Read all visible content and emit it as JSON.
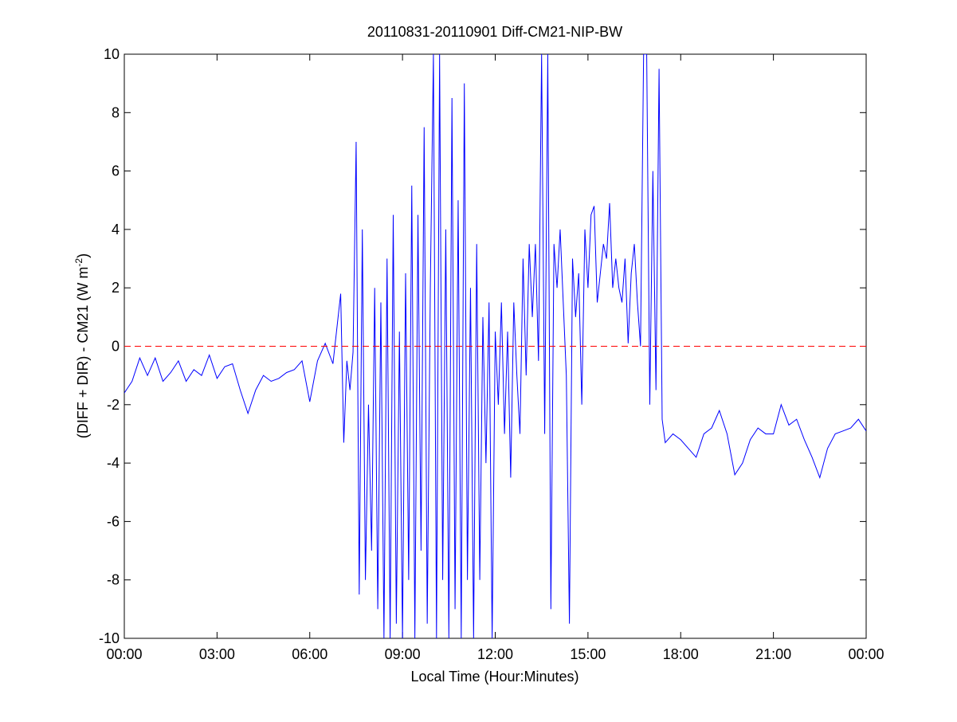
{
  "chart_data": {
    "type": "line",
    "title": "20110831-20110901 Diff-CM21-NIP-BW",
    "xlabel": "Local Time (Hour:Minutes)",
    "ylabel": "(DIFF + DIR) - CM21 (W m",
    "ylabel_sup": "-2",
    "ylabel_end": ")",
    "color": "#0000ff",
    "reference_line": {
      "value": 0,
      "color": "#ff0000",
      "style": "dashed"
    },
    "xlim": [
      0,
      24
    ],
    "xticks": [
      {
        "value": 0,
        "label": "00:00"
      },
      {
        "value": 3,
        "label": "03:00"
      },
      {
        "value": 6,
        "label": "06:00"
      },
      {
        "value": 9,
        "label": "09:00"
      },
      {
        "value": 12,
        "label": "12:00"
      },
      {
        "value": 15,
        "label": "15:00"
      },
      {
        "value": 18,
        "label": "18:00"
      },
      {
        "value": 21,
        "label": "21:00"
      },
      {
        "value": 24,
        "label": "00:00"
      }
    ],
    "ylim": [
      -10,
      10
    ],
    "yticks": [
      -10,
      -8,
      -6,
      -4,
      -2,
      0,
      2,
      4,
      6,
      8,
      10
    ],
    "x": [
      0,
      0.25,
      0.5,
      0.75,
      1,
      1.25,
      1.5,
      1.75,
      2,
      2.25,
      2.5,
      2.75,
      3,
      3.25,
      3.5,
      3.75,
      4,
      4.25,
      4.5,
      4.75,
      5,
      5.25,
      5.5,
      5.75,
      6,
      6.25,
      6.5,
      6.75,
      7,
      7.1,
      7.2,
      7.3,
      7.4,
      7.5,
      7.6,
      7.7,
      7.8,
      7.9,
      8,
      8.1,
      8.2,
      8.3,
      8.4,
      8.5,
      8.6,
      8.7,
      8.8,
      8.9,
      9,
      9.1,
      9.2,
      9.3,
      9.4,
      9.5,
      9.6,
      9.7,
      9.8,
      9.9,
      10,
      10.1,
      10.2,
      10.3,
      10.4,
      10.5,
      10.6,
      10.7,
      10.8,
      10.9,
      11,
      11.1,
      11.2,
      11.3,
      11.4,
      11.5,
      11.6,
      11.7,
      11.8,
      11.9,
      12,
      12.1,
      12.2,
      12.3,
      12.4,
      12.5,
      12.6,
      12.7,
      12.8,
      12.9,
      13,
      13.1,
      13.2,
      13.3,
      13.4,
      13.5,
      13.6,
      13.7,
      13.8,
      13.9,
      14,
      14.1,
      14.2,
      14.3,
      14.4,
      14.5,
      14.6,
      14.7,
      14.8,
      14.9,
      15,
      15.1,
      15.2,
      15.3,
      15.4,
      15.5,
      15.6,
      15.7,
      15.8,
      15.9,
      16,
      16.1,
      16.2,
      16.3,
      16.4,
      16.5,
      16.6,
      16.7,
      16.8,
      16.9,
      17,
      17.1,
      17.2,
      17.3,
      17.4,
      17.5,
      17.75,
      18,
      18.25,
      18.5,
      18.75,
      19,
      19.25,
      19.5,
      19.75,
      20,
      20.25,
      20.5,
      20.75,
      21,
      21.25,
      21.5,
      21.75,
      22,
      22.25,
      22.5,
      22.75,
      23,
      23.25,
      23.5,
      23.75,
      24
    ],
    "values": [
      -1.6,
      -1.2,
      -0.4,
      -1.0,
      -0.4,
      -1.2,
      -0.9,
      -0.5,
      -1.2,
      -0.8,
      -1.0,
      -0.3,
      -1.1,
      -0.7,
      -0.6,
      -1.5,
      -2.3,
      -1.5,
      -1.0,
      -1.2,
      -1.1,
      -0.9,
      -0.8,
      -0.5,
      -1.9,
      -0.5,
      0.1,
      -0.6,
      1.8,
      -3.3,
      -0.5,
      -1.5,
      -0.2,
      7.0,
      -8.5,
      4.0,
      -8.0,
      -2.0,
      -7.0,
      2.0,
      -9.0,
      1.5,
      -10,
      3.0,
      -10,
      4.5,
      -9.5,
      0.5,
      -10,
      2.5,
      -8.0,
      5.5,
      -10,
      4.5,
      -7.0,
      7.5,
      -9.5,
      2.0,
      10,
      -10,
      10,
      -8.0,
      4.0,
      -10,
      8.5,
      -9.0,
      5.0,
      -10,
      9.0,
      -8.0,
      2.0,
      -10,
      3.5,
      -8.0,
      1.0,
      -4.0,
      1.5,
      -10,
      0.5,
      -2.0,
      1.5,
      -3.0,
      0.5,
      -4.5,
      1.5,
      -1.0,
      -3.0,
      3.0,
      -1.0,
      3.5,
      1.0,
      3.5,
      -0.5,
      10,
      -3.0,
      10,
      -9.0,
      3.5,
      2.0,
      4.0,
      1.5,
      -1.0,
      -9.5,
      3.0,
      1.0,
      2.5,
      -2.0,
      4.0,
      2.0,
      4.5,
      4.8,
      1.5,
      2.5,
      3.5,
      3.0,
      4.9,
      2.0,
      3.0,
      2.0,
      1.5,
      3.0,
      0.1,
      2.5,
      3.5,
      1.5,
      0.0,
      10,
      10,
      -2.0,
      6.0,
      -1.5,
      9.5,
      -2.5,
      -3.3,
      -3.0,
      -3.2,
      -3.5,
      -3.8,
      -3.0,
      -2.8,
      -2.2,
      -3.0,
      -4.4,
      -4.0,
      -3.2,
      -2.8,
      -3.0,
      -3.0,
      -2.0,
      -2.7,
      -2.5,
      -3.2,
      -3.8,
      -4.5,
      -3.5,
      -3.0,
      -2.9,
      -2.8,
      -2.5,
      -2.9
    ]
  }
}
